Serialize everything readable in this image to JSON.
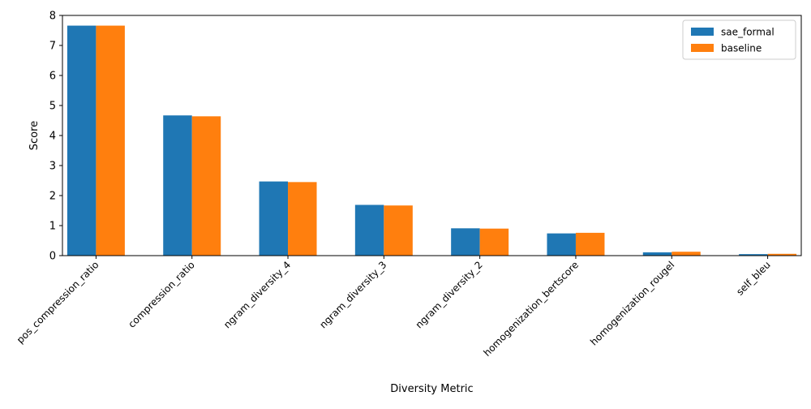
{
  "chart_data": {
    "type": "bar",
    "title": "",
    "xlabel": "Diversity Metric",
    "ylabel": "Score",
    "categories": [
      "pos_compression_ratio",
      "compression_ratio",
      "ngram_diversity_4",
      "ngram_diversity_3",
      "ngram_diversity_2",
      "homogenization_bertscore",
      "homogenization_rougel",
      "self_bleu"
    ],
    "series": [
      {
        "name": "sae_formal",
        "color": "#1f77b4",
        "values": [
          7.66,
          4.67,
          2.47,
          1.69,
          0.91,
          0.74,
          0.11,
          0.05
        ]
      },
      {
        "name": "baseline",
        "color": "#ff7f0e",
        "values": [
          7.66,
          4.64,
          2.45,
          1.67,
          0.9,
          0.76,
          0.13,
          0.06
        ]
      }
    ],
    "ylim": [
      0,
      8
    ],
    "yticks": [
      0,
      1,
      2,
      3,
      4,
      5,
      6,
      7,
      8
    ],
    "legend_position": "top-right",
    "grid": false
  }
}
